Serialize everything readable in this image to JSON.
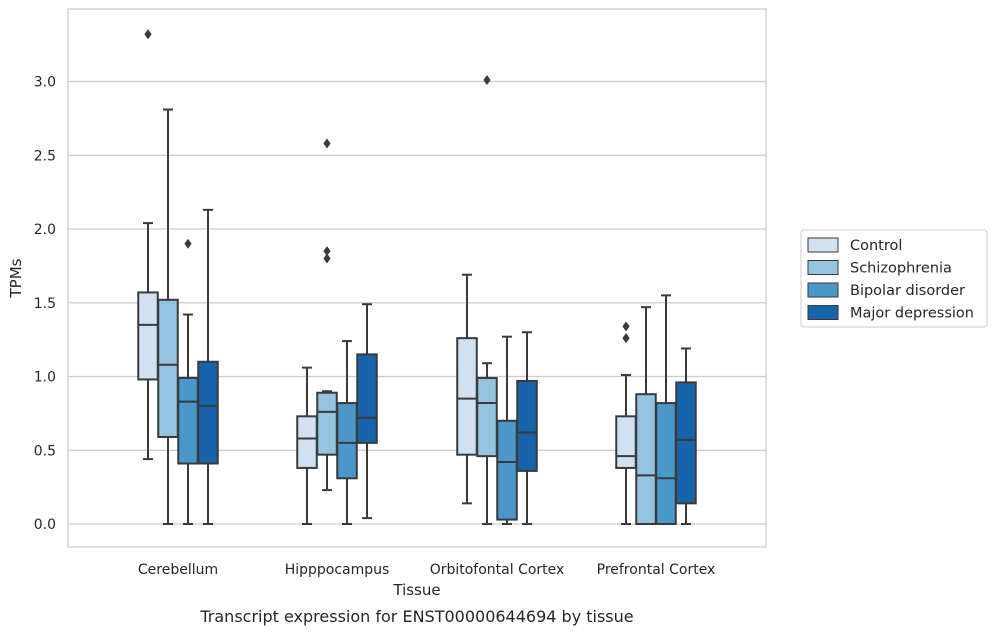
{
  "caption": "Transcript expression for ENST00000644694 by tissue",
  "chart_data": {
    "type": "box",
    "title": "",
    "xlabel": "Tissue",
    "ylabel": "TPMs",
    "ylim": [
      -0.16,
      3.5
    ],
    "yticks": [
      "0.0",
      "0.5",
      "1.0",
      "1.5",
      "2.0",
      "2.5",
      "3.0"
    ],
    "grid": "horizontal",
    "legend_position": "right",
    "categories": [
      "Cerebellum",
      "Hipppocampus",
      "Orbitofontal Cortex",
      "Prefrontal Cortex"
    ],
    "series": [
      {
        "name": "Control",
        "color": "#d0e1f2",
        "boxes": [
          {
            "whisker_low": 0.44,
            "q1": 0.98,
            "median": 1.35,
            "q3": 1.57,
            "whisker_high": 2.04,
            "outliers": [
              3.32
            ]
          },
          {
            "whisker_low": 0.0,
            "q1": 0.38,
            "median": 0.58,
            "q3": 0.73,
            "whisker_high": 1.06,
            "outliers": []
          },
          {
            "whisker_low": 0.14,
            "q1": 0.47,
            "median": 0.85,
            "q3": 1.26,
            "whisker_high": 1.69,
            "outliers": []
          },
          {
            "whisker_low": 0.0,
            "q1": 0.38,
            "median": 0.46,
            "q3": 0.73,
            "whisker_high": 1.01,
            "outliers": [
              1.26,
              1.34
            ]
          }
        ]
      },
      {
        "name": "Schizophrenia",
        "color": "#94c4df",
        "boxes": [
          {
            "whisker_low": 0.0,
            "q1": 0.59,
            "median": 1.08,
            "q3": 1.52,
            "whisker_high": 2.81,
            "outliers": []
          },
          {
            "whisker_low": 0.23,
            "q1": 0.47,
            "median": 0.76,
            "q3": 0.89,
            "whisker_high": 0.9,
            "outliers": [
              1.8,
              1.85,
              2.58
            ]
          },
          {
            "whisker_low": 0.0,
            "q1": 0.46,
            "median": 0.82,
            "q3": 0.99,
            "whisker_high": 1.09,
            "outliers": [
              3.01
            ]
          },
          {
            "whisker_low": 0.0,
            "q1": 0.0,
            "median": 0.33,
            "q3": 0.88,
            "whisker_high": 1.47,
            "outliers": []
          }
        ]
      },
      {
        "name": "Bipolar disorder",
        "color": "#4a98c9",
        "boxes": [
          {
            "whisker_low": 0.0,
            "q1": 0.41,
            "median": 0.83,
            "q3": 0.99,
            "whisker_high": 1.42,
            "outliers": [
              1.9
            ]
          },
          {
            "whisker_low": 0.0,
            "q1": 0.31,
            "median": 0.55,
            "q3": 0.82,
            "whisker_high": 1.24,
            "outliers": []
          },
          {
            "whisker_low": 0.0,
            "q1": 0.03,
            "median": 0.42,
            "q3": 0.7,
            "whisker_high": 1.27,
            "outliers": []
          },
          {
            "whisker_low": 0.0,
            "q1": 0.0,
            "median": 0.31,
            "q3": 0.82,
            "whisker_high": 1.55,
            "outliers": []
          }
        ]
      },
      {
        "name": "Major depression",
        "color": "#1764ab",
        "boxes": [
          {
            "whisker_low": 0.0,
            "q1": 0.41,
            "median": 0.8,
            "q3": 1.1,
            "whisker_high": 2.13,
            "outliers": []
          },
          {
            "whisker_low": 0.04,
            "q1": 0.55,
            "median": 0.72,
            "q3": 1.15,
            "whisker_high": 1.49,
            "outliers": []
          },
          {
            "whisker_low": 0.0,
            "q1": 0.36,
            "median": 0.62,
            "q3": 0.97,
            "whisker_high": 1.3,
            "outliers": []
          },
          {
            "whisker_low": 0.0,
            "q1": 0.14,
            "median": 0.57,
            "q3": 0.96,
            "whisker_high": 1.19,
            "outliers": []
          }
        ]
      }
    ]
  }
}
